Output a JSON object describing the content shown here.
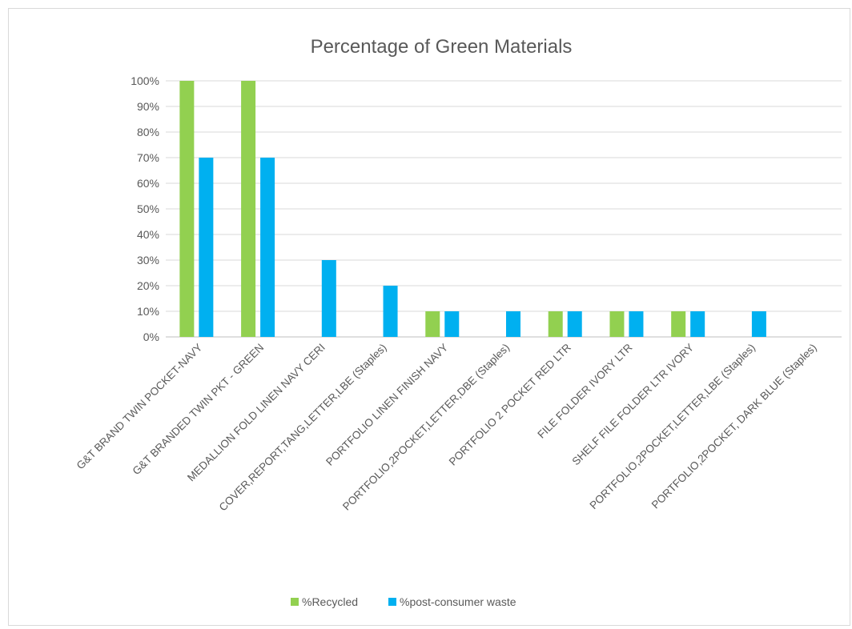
{
  "chart_data": {
    "type": "bar",
    "title": "Percentage of Green Materials",
    "xlabel": "",
    "ylabel": "",
    "ylim": [
      0,
      100
    ],
    "yticks": [
      "0%",
      "10%",
      "20%",
      "30%",
      "40%",
      "50%",
      "60%",
      "70%",
      "80%",
      "90%",
      "100%"
    ],
    "grid": true,
    "legend_position": "bottom",
    "categories": [
      "G&T BRAND TWIN POCKET-NAVY",
      "G&T BRANDED TWIN PKT - GREEN",
      "MEDALLION FOLD LINEN NAVY CERI",
      "COVER,REPORT,TANG,LETTER,LBE (Staples)",
      "PORTFOLIO LINEN FINISH NAVY",
      "PORTFOLIO,2POCKET,LETTER,DBE (Staples)",
      "PORTFOLIO 2 POCKET RED LTR",
      "FILE FOLDER IVORY LTR",
      "SHELF FILE FOLDER LTR IVORY",
      "PORTFOLIO,2POCKET,LETTER,LBE (Staples)",
      "PORTFOLIO,2POCKET, DARK BLUE (Staples)"
    ],
    "series": [
      {
        "name": "%Recycled",
        "color": "#92d050",
        "values": [
          100,
          100,
          0,
          0,
          10,
          0,
          10,
          10,
          10,
          0,
          0
        ]
      },
      {
        "name": "%post-consumer waste",
        "color": "#00b0f0",
        "values": [
          70,
          70,
          30,
          20,
          10,
          10,
          10,
          10,
          10,
          10,
          0
        ]
      }
    ]
  }
}
